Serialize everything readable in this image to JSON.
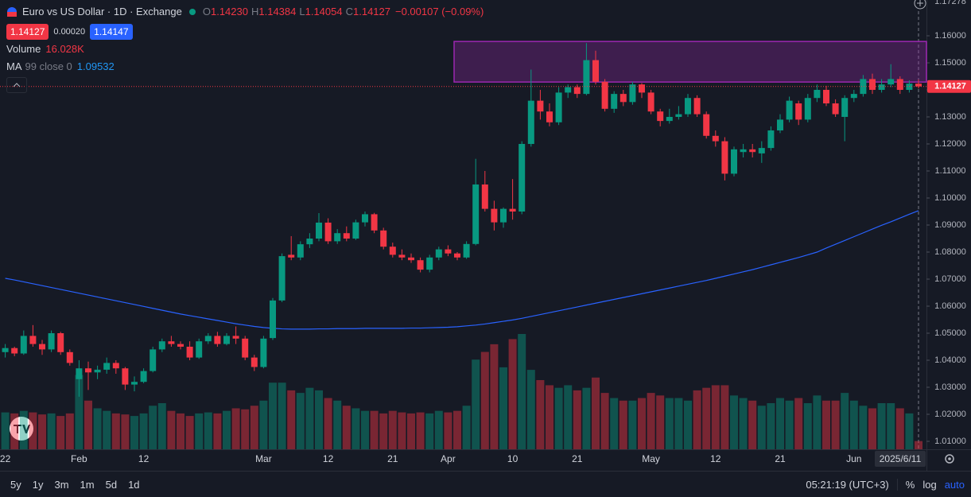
{
  "chart_data": {
    "type": "candlestick",
    "title": "Euro vs US Dollar · 1D · Exchange",
    "legend_ohlc": [
      {
        "key": "O",
        "value": "1.14230"
      },
      {
        "key": "H",
        "value": "1.14384"
      },
      {
        "key": "L",
        "value": "1.14054"
      },
      {
        "key": "C",
        "value": "1.14127"
      }
    ],
    "change": "−0.00107 (−0.09%)",
    "spread": "0.00020",
    "ask": "1.14147",
    "up_color": "#089981",
    "down_color": "#f23645",
    "categories": [
      "22",
      null,
      null,
      null,
      null,
      null,
      null,
      null,
      "Feb",
      null,
      null,
      null,
      null,
      null,
      null,
      "12",
      null,
      null,
      null,
      null,
      null,
      null,
      null,
      null,
      null,
      null,
      null,
      null,
      "Mar",
      null,
      null,
      null,
      null,
      null,
      null,
      "12",
      null,
      null,
      null,
      null,
      null,
      null,
      "21",
      null,
      null,
      null,
      null,
      null,
      "Apr",
      null,
      null,
      null,
      null,
      null,
      null,
      "10",
      null,
      null,
      null,
      null,
      null,
      null,
      "21",
      null,
      null,
      null,
      null,
      null,
      null,
      null,
      "May",
      null,
      null,
      null,
      null,
      null,
      null,
      "12",
      null,
      null,
      null,
      null,
      null,
      null,
      "21",
      null,
      null,
      null,
      null,
      null,
      null,
      null,
      "Jun",
      null,
      null,
      null,
      null,
      null,
      null,
      "2025/6/11"
    ],
    "ohlc": [
      [
        1.043,
        1.046,
        1.041,
        1.0445
      ],
      [
        1.0445,
        1.045,
        1.0415,
        1.0425
      ],
      [
        1.0425,
        1.051,
        1.042,
        1.049
      ],
      [
        1.049,
        1.053,
        1.045,
        1.046
      ],
      [
        1.046,
        1.0475,
        1.042,
        1.044
      ],
      [
        1.044,
        1.051,
        1.043,
        1.05
      ],
      [
        1.05,
        1.0505,
        1.042,
        1.043
      ],
      [
        1.043,
        1.044,
        1.038,
        1.039
      ],
      [
        1.033,
        1.04,
        1.0265,
        1.037
      ],
      [
        1.037,
        1.0395,
        1.029,
        1.0355
      ],
      [
        1.0355,
        1.038,
        1.033,
        1.0365
      ],
      [
        1.0365,
        1.041,
        1.035,
        1.039
      ],
      [
        1.039,
        1.04,
        1.035,
        1.037
      ],
      [
        1.037,
        1.0375,
        1.029,
        1.031
      ],
      [
        1.031,
        1.034,
        1.0285,
        1.032
      ],
      [
        1.032,
        1.037,
        1.0315,
        1.036
      ],
      [
        1.036,
        1.045,
        1.0355,
        1.044
      ],
      [
        1.044,
        1.048,
        1.043,
        1.047
      ],
      [
        1.047,
        1.049,
        1.045,
        1.046
      ],
      [
        1.046,
        1.047,
        1.044,
        1.045
      ],
      [
        1.045,
        1.047,
        1.04,
        1.041
      ],
      [
        1.041,
        1.048,
        1.0405,
        1.047
      ],
      [
        1.047,
        1.05,
        1.046,
        1.049
      ],
      [
        1.049,
        1.0505,
        1.045,
        1.046
      ],
      [
        1.046,
        1.05,
        1.0455,
        1.049
      ],
      [
        1.049,
        1.0525,
        1.046,
        1.048
      ],
      [
        1.048,
        1.049,
        1.04,
        1.041
      ],
      [
        1.041,
        1.042,
        1.036,
        1.0375
      ],
      [
        1.0375,
        1.049,
        1.037,
        1.048
      ],
      [
        1.0482,
        1.063,
        1.0475,
        1.0621
      ],
      [
        1.0621,
        1.0795,
        1.0615,
        1.0785
      ],
      [
        1.079,
        1.0859,
        1.077,
        1.078
      ],
      [
        1.078,
        1.084,
        1.077,
        1.0829
      ],
      [
        1.0829,
        1.087,
        1.0815,
        1.085
      ],
      [
        1.085,
        1.0944,
        1.084,
        1.0909
      ],
      [
        1.0909,
        1.0925,
        1.083,
        1.084
      ],
      [
        1.084,
        1.0885,
        1.083,
        1.087
      ],
      [
        1.087,
        1.0895,
        1.084,
        1.085
      ],
      [
        1.085,
        1.092,
        1.0845,
        1.091
      ],
      [
        1.091,
        1.095,
        1.0895,
        1.094
      ],
      [
        1.094,
        1.0945,
        1.087,
        1.088
      ],
      [
        1.088,
        1.089,
        1.081,
        1.082
      ],
      [
        1.082,
        1.0835,
        1.078,
        1.079
      ],
      [
        1.079,
        1.081,
        1.077,
        1.078
      ],
      [
        1.078,
        1.0795,
        1.076,
        1.077
      ],
      [
        1.077,
        1.078,
        1.0725,
        1.0735
      ],
      [
        1.0735,
        1.079,
        1.0725,
        1.078
      ],
      [
        1.078,
        1.082,
        1.077,
        1.081
      ],
      [
        1.081,
        1.0825,
        1.0785,
        1.0795
      ],
      [
        1.0795,
        1.08,
        1.077,
        1.078
      ],
      [
        1.078,
        1.084,
        1.0775,
        1.083
      ],
      [
        1.083,
        1.1145,
        1.0825,
        1.105
      ],
      [
        1.105,
        1.11,
        1.095,
        1.096
      ],
      [
        1.096,
        1.099,
        1.088,
        1.091
      ],
      [
        1.091,
        1.0965,
        1.089,
        1.096
      ],
      [
        1.096,
        1.107,
        1.092,
        1.095
      ],
      [
        1.095,
        1.121,
        1.094,
        1.12
      ],
      [
        1.12,
        1.1475,
        1.119,
        1.136
      ],
      [
        1.136,
        1.14,
        1.129,
        1.132
      ],
      [
        1.132,
        1.135,
        1.1265,
        1.128
      ],
      [
        1.128,
        1.141,
        1.127,
        1.139
      ],
      [
        1.139,
        1.142,
        1.137,
        1.141
      ],
      [
        1.141,
        1.142,
        1.137,
        1.1385
      ],
      [
        1.1385,
        1.1573,
        1.138,
        1.151
      ],
      [
        1.151,
        1.1545,
        1.142,
        1.143
      ],
      [
        1.143,
        1.144,
        1.132,
        1.133
      ],
      [
        1.133,
        1.1395,
        1.1315,
        1.1385
      ],
      [
        1.1385,
        1.14,
        1.134,
        1.1355
      ],
      [
        1.1355,
        1.143,
        1.1345,
        1.142
      ],
      [
        1.142,
        1.1425,
        1.137,
        1.139
      ],
      [
        1.139,
        1.14,
        1.131,
        1.132
      ],
      [
        1.132,
        1.133,
        1.1265,
        1.1285
      ],
      [
        1.1285,
        1.133,
        1.1275,
        1.13
      ],
      [
        1.13,
        1.134,
        1.129,
        1.131
      ],
      [
        1.131,
        1.1385,
        1.13,
        1.137
      ],
      [
        1.137,
        1.138,
        1.13,
        1.131
      ],
      [
        1.131,
        1.132,
        1.122,
        1.123
      ],
      [
        1.123,
        1.125,
        1.119,
        1.121
      ],
      [
        1.121,
        1.1225,
        1.1065,
        1.109
      ],
      [
        1.109,
        1.119,
        1.108,
        1.118
      ],
      [
        1.117,
        1.12,
        1.115,
        1.118
      ],
      [
        1.118,
        1.12,
        1.115,
        1.117
      ],
      [
        1.1165,
        1.121,
        1.113,
        1.1185
      ],
      [
        1.1185,
        1.1265,
        1.1175,
        1.125
      ],
      [
        1.125,
        1.131,
        1.124,
        1.129
      ],
      [
        1.129,
        1.1375,
        1.128,
        1.136
      ],
      [
        1.135,
        1.136,
        1.127,
        1.129
      ],
      [
        1.129,
        1.1385,
        1.128,
        1.137
      ],
      [
        1.137,
        1.142,
        1.1355,
        1.14
      ],
      [
        1.14,
        1.1415,
        1.134,
        1.135
      ],
      [
        1.135,
        1.1365,
        1.13,
        1.131
      ],
      [
        1.13,
        1.138,
        1.121,
        1.137
      ],
      [
        1.137,
        1.14,
        1.1355,
        1.1385
      ],
      [
        1.1385,
        1.1455,
        1.1375,
        1.144
      ],
      [
        1.144,
        1.146,
        1.1385,
        1.14
      ],
      [
        1.14,
        1.144,
        1.139,
        1.142
      ],
      [
        1.142,
        1.1495,
        1.141,
        1.144
      ],
      [
        1.144,
        1.145,
        1.1385,
        1.14
      ],
      [
        1.14,
        1.1435,
        1.139,
        1.1423
      ],
      [
        1.1423,
        1.14384,
        1.14054,
        1.14127
      ]
    ],
    "volume": {
      "name": "Volume",
      "legend_value": "16.028K",
      "values": [
        72,
        70,
        75,
        72,
        68,
        70,
        65,
        70,
        145,
        95,
        80,
        75,
        70,
        68,
        65,
        70,
        85,
        90,
        75,
        70,
        65,
        70,
        72,
        70,
        75,
        80,
        78,
        85,
        95,
        130,
        130,
        115,
        110,
        120,
        115,
        100,
        95,
        85,
        80,
        75,
        75,
        70,
        75,
        72,
        70,
        72,
        70,
        75,
        72,
        75,
        85,
        175,
        190,
        205,
        160,
        215,
        225,
        155,
        135,
        125,
        120,
        125,
        115,
        120,
        140,
        110,
        100,
        95,
        95,
        100,
        110,
        105,
        100,
        100,
        95,
        115,
        120,
        125,
        125,
        105,
        100,
        95,
        85,
        90,
        100,
        95,
        100,
        90,
        105,
        95,
        95,
        110,
        95,
        85,
        80,
        90,
        90,
        80,
        70,
        16.028
      ]
    },
    "ma": {
      "name": "MA",
      "params": "99 close 0",
      "color": "#2962ff",
      "values": [
        1.0703,
        1.0697,
        1.069,
        1.0683,
        1.0676,
        1.0669,
        1.0662,
        1.0655,
        1.0648,
        1.0641,
        1.0634,
        1.0627,
        1.062,
        1.0613,
        1.0606,
        1.0599,
        1.0592,
        1.0585,
        1.0578,
        1.0571,
        1.0565,
        1.0559,
        1.0553,
        1.0547,
        1.0541,
        1.0535,
        1.053,
        1.0525,
        1.0521,
        1.0518,
        1.0516,
        1.0515,
        1.0515,
        1.0515,
        1.0516,
        1.0516,
        1.0517,
        1.0517,
        1.0517,
        1.0518,
        1.0518,
        1.0518,
        1.0518,
        1.0518,
        1.0519,
        1.0519,
        1.052,
        1.0521,
        1.0522,
        1.0524,
        1.0527,
        1.053,
        1.0534,
        1.0539,
        1.0544,
        1.0549,
        1.0555,
        1.0562,
        1.0569,
        1.0576,
        1.0583,
        1.059,
        1.0597,
        1.0604,
        1.0611,
        1.0618,
        1.0625,
        1.0632,
        1.0639,
        1.0646,
        1.0653,
        1.066,
        1.0667,
        1.0674,
        1.0681,
        1.0688,
        1.0695,
        1.0703,
        1.0711,
        1.0719,
        1.0727,
        1.0735,
        1.0744,
        1.0753,
        1.0762,
        1.0771,
        1.078,
        1.079,
        1.08,
        1.0815,
        1.0829,
        1.0843,
        1.0857,
        1.0871,
        1.0885,
        1.0899,
        1.0912,
        1.0926,
        1.094,
        1.09532
      ]
    },
    "zone": {
      "top": 1.1579,
      "bottom": 1.1429,
      "start_index": 49,
      "color": "#9c27b0"
    },
    "ylim": [
      1.00706,
      1.17324
    ],
    "axis_top_label": "1.17278",
    "yticks": [
      {
        "value": 1.16,
        "label": "1.16000"
      },
      {
        "value": 1.15,
        "label": "1.15000"
      },
      {
        "value": 1.14,
        "label": "1.14000"
      },
      {
        "value": 1.13,
        "label": "1.13000"
      },
      {
        "value": 1.12,
        "label": "1.12000"
      },
      {
        "value": 1.11,
        "label": "1.11000"
      },
      {
        "value": 1.1,
        "label": "1.10000"
      },
      {
        "value": 1.09,
        "label": "1.09000"
      },
      {
        "value": 1.08,
        "label": "1.08000"
      },
      {
        "value": 1.07,
        "label": "1.07000"
      },
      {
        "value": 1.06,
        "label": "1.06000"
      },
      {
        "value": 1.05,
        "label": "1.05000"
      },
      {
        "value": 1.04,
        "label": "1.04000"
      },
      {
        "value": 1.03,
        "label": "1.03000"
      },
      {
        "value": 1.02,
        "label": "1.02000"
      },
      {
        "value": 1.01,
        "label": "1.01000"
      }
    ],
    "grid": false,
    "ranges": [
      "5y",
      "1y",
      "3m",
      "1m",
      "5d",
      "1d"
    ],
    "clock": "05:21:19 (UTC+3)",
    "scale_options": [
      "%",
      "log",
      "auto"
    ]
  }
}
